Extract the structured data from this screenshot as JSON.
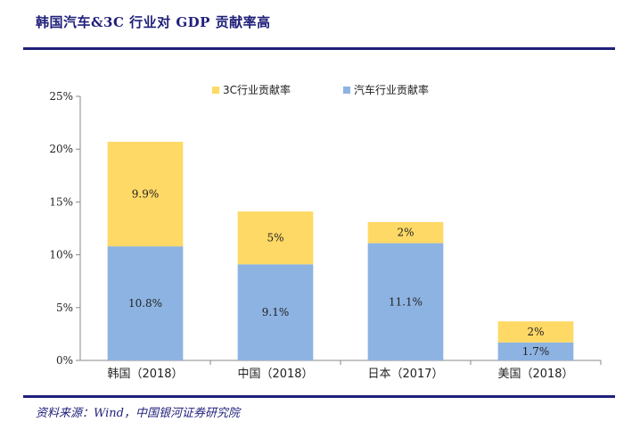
{
  "page": {
    "title": "韩国汽车&3C 行业对 GDP 贡献率高",
    "source": "资料来源：Wind，中国银河证券研究院"
  },
  "chart_data": {
    "type": "bar",
    "stacked": true,
    "categories": [
      "韩国（2018）",
      "中国（2018）",
      "日本（2017）",
      "美国（2018）"
    ],
    "series": [
      {
        "name": "汽车行业贡献率",
        "values": [
          10.8,
          9.1,
          11.1,
          1.7
        ],
        "labels": [
          "10.8%",
          "9.1%",
          "11.1%",
          "1.7%"
        ],
        "color": "#8db3e2"
      },
      {
        "name": "3C行业贡献率",
        "values": [
          9.9,
          5,
          2,
          2
        ],
        "labels": [
          "9.9%",
          "5%",
          "2%",
          "2%"
        ],
        "color": "#ffd966"
      }
    ],
    "ylim": [
      0,
      25
    ],
    "yticks": [
      0,
      5,
      10,
      15,
      20,
      25
    ],
    "ytick_labels": [
      "0%",
      "5%",
      "10%",
      "15%",
      "20%",
      "25%"
    ],
    "legend_position": "top",
    "legend_order": [
      "3C行业贡献率",
      "汽车行业贡献率"
    ],
    "grid": false
  }
}
